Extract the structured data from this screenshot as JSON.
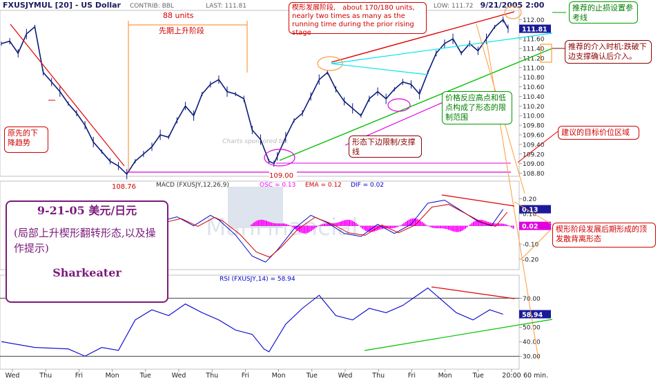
{
  "header": {
    "symbol": "FXUSJYMUL [20] - US Dollar",
    "contrib": "CONTRIB: BBL",
    "last": "LAST: 111.81",
    "low": "LOW: 111.72",
    "date": "9/21/2005 2:00",
    "current_price": "111.81"
  },
  "annotations": {
    "prior_downtrend": "原先的下降趋势",
    "units_88": "88 units",
    "prior_rise_stage": "先期上升阶段",
    "wedge_stage": "楔形发展阶段,　about 170/180 units, nearly two times as many as the running time during the prior rising stage",
    "stop_loss": "推荐的止损设置参考线",
    "entry_timing": "推荐的介入时机:跌破下边支撑确认后介入。",
    "limit_range": "价格反应高点和低点构成了形态的限制范围",
    "lower_support": "形态下边限制/支撑线",
    "target_zone": "建议的目标价位区域",
    "divergence": "楔形阶段发展后期形成的顶发散背离形态",
    "low_108_76": "108.76",
    "low_109_00": "109.00",
    "watermark": "Charts sponsored by:"
  },
  "info_box": {
    "date_title": "9-21-05 美元/日元",
    "subtitle": "(局部上升楔形翻转形态,以及操作提示)",
    "author": "Sharkeater"
  },
  "chart_data": [
    {
      "type": "line",
      "title": "FXUSJYMUL [20] - US Dollar",
      "y_ticks": [
        "112.00",
        "111.80",
        "111.60",
        "111.40",
        "111.20",
        "111.00",
        "110.80",
        "110.60",
        "110.40",
        "110.20",
        "110.00",
        "109.80",
        "109.60",
        "109.40",
        "109.20",
        "109.00",
        "108.80"
      ],
      "ylim": [
        108.75,
        112.15
      ],
      "x_ticks": [
        "Wed",
        "Thu",
        "Fri",
        "Mon",
        "Tue",
        "Wed",
        "Thu",
        "Fri",
        "Mon",
        "Tue",
        "Wed",
        "Thu",
        "Fri",
        "Mon",
        "Tue",
        "20:00"
      ],
      "x_unit_label": "60 min.",
      "price_points": [
        [
          0,
          111.5
        ],
        [
          5,
          111.55
        ],
        [
          10,
          111.3
        ],
        [
          15,
          111.7
        ],
        [
          20,
          111.85
        ],
        [
          25,
          110.9
        ],
        [
          30,
          110.7
        ],
        [
          35,
          110.5
        ],
        [
          40,
          110.25
        ],
        [
          45,
          110.05
        ],
        [
          50,
          109.8
        ],
        [
          55,
          109.45
        ],
        [
          60,
          109.25
        ],
        [
          65,
          109.05
        ],
        [
          70,
          108.95
        ],
        [
          75,
          108.78
        ],
        [
          80,
          109.05
        ],
        [
          85,
          109.2
        ],
        [
          90,
          109.35
        ],
        [
          95,
          109.6
        ],
        [
          100,
          109.55
        ],
        [
          105,
          109.9
        ],
        [
          110,
          110.2
        ],
        [
          115,
          110.0
        ],
        [
          120,
          110.45
        ],
        [
          125,
          110.65
        ],
        [
          130,
          110.75
        ],
        [
          135,
          110.5
        ],
        [
          140,
          110.45
        ],
        [
          145,
          110.35
        ],
        [
          150,
          109.7
        ],
        [
          155,
          109.5
        ],
        [
          160,
          109.05
        ],
        [
          163,
          109.0
        ],
        [
          165,
          109.15
        ],
        [
          170,
          109.55
        ],
        [
          175,
          109.9
        ],
        [
          180,
          110.05
        ],
        [
          185,
          110.4
        ],
        [
          190,
          110.75
        ],
        [
          195,
          110.9
        ],
        [
          200,
          110.55
        ],
        [
          205,
          110.3
        ],
        [
          210,
          110.15
        ],
        [
          215,
          110.0
        ],
        [
          220,
          110.35
        ],
        [
          225,
          110.5
        ],
        [
          230,
          110.35
        ],
        [
          235,
          110.55
        ],
        [
          240,
          110.7
        ],
        [
          245,
          110.65
        ],
        [
          250,
          110.45
        ],
        [
          255,
          110.9
        ],
        [
          260,
          111.3
        ],
        [
          265,
          111.5
        ],
        [
          270,
          111.6
        ],
        [
          275,
          111.3
        ],
        [
          280,
          111.5
        ],
        [
          285,
          111.35
        ],
        [
          290,
          111.6
        ],
        [
          295,
          111.85
        ],
        [
          300,
          112.0
        ],
        [
          303,
          111.81
        ]
      ],
      "annotated_values": [
        {
          "label": "108.76",
          "value": 108.76
        },
        {
          "label": "109.00",
          "value": 109.0
        },
        {
          "label": "LAST",
          "value": 111.81
        },
        {
          "label": "LOW",
          "value": 111.72
        }
      ]
    },
    {
      "type": "line",
      "title": "MACD (FXUSJY,12,26,9)",
      "legend": [
        {
          "label": "OSC = 0.13",
          "color": "#ff00ff"
        },
        {
          "label": "EMA = 0.12",
          "color": "#d00000"
        },
        {
          "label": "DIF = 0.02",
          "color": "#0000cc"
        }
      ],
      "y_ticks": [
        "0.20",
        "0.10",
        "0.02",
        "-0.10",
        "-0.20"
      ],
      "ylim": [
        -0.26,
        0.27
      ],
      "macd_series": [
        [
          75,
          0.12
        ],
        [
          85,
          0.1
        ],
        [
          95,
          0.05
        ],
        [
          105,
          0.08
        ],
        [
          115,
          0.02
        ],
        [
          125,
          0.09
        ],
        [
          130,
          0.06
        ],
        [
          140,
          -0.04
        ],
        [
          150,
          -0.18
        ],
        [
          158,
          -0.22
        ],
        [
          165,
          -0.14
        ],
        [
          175,
          0.0
        ],
        [
          185,
          0.09
        ],
        [
          195,
          0.04
        ],
        [
          205,
          -0.03
        ],
        [
          215,
          -0.05
        ],
        [
          225,
          0.03
        ],
        [
          235,
          -0.03
        ],
        [
          245,
          0.03
        ],
        [
          255,
          0.17
        ],
        [
          265,
          0.19
        ],
        [
          275,
          0.12
        ],
        [
          285,
          0.05
        ],
        [
          293,
          0.02
        ],
        [
          300,
          0.13
        ]
      ],
      "value_labels": [
        "0.13",
        "0.02"
      ]
    },
    {
      "type": "line",
      "title": "RSI (FXUSJY,14) = 58.94",
      "y_ticks": [
        "70.00",
        "50.00",
        "40.00",
        "30.00"
      ],
      "ylim": [
        22,
        83
      ],
      "rsi_series": [
        [
          0,
          40
        ],
        [
          20,
          36
        ],
        [
          40,
          35
        ],
        [
          50,
          30
        ],
        [
          60,
          36
        ],
        [
          70,
          34
        ],
        [
          80,
          55
        ],
        [
          90,
          62
        ],
        [
          100,
          58
        ],
        [
          110,
          66
        ],
        [
          120,
          60
        ],
        [
          130,
          55
        ],
        [
          140,
          48
        ],
        [
          150,
          45
        ],
        [
          157,
          35
        ],
        [
          160,
          33
        ],
        [
          170,
          52
        ],
        [
          180,
          63
        ],
        [
          190,
          72
        ],
        [
          200,
          58
        ],
        [
          210,
          55
        ],
        [
          220,
          63
        ],
        [
          230,
          60
        ],
        [
          240,
          65
        ],
        [
          250,
          73
        ],
        [
          255,
          77
        ],
        [
          262,
          70
        ],
        [
          272,
          60
        ],
        [
          282,
          55
        ],
        [
          292,
          62
        ],
        [
          300,
          58.94
        ]
      ],
      "current_value": "58.94"
    }
  ]
}
